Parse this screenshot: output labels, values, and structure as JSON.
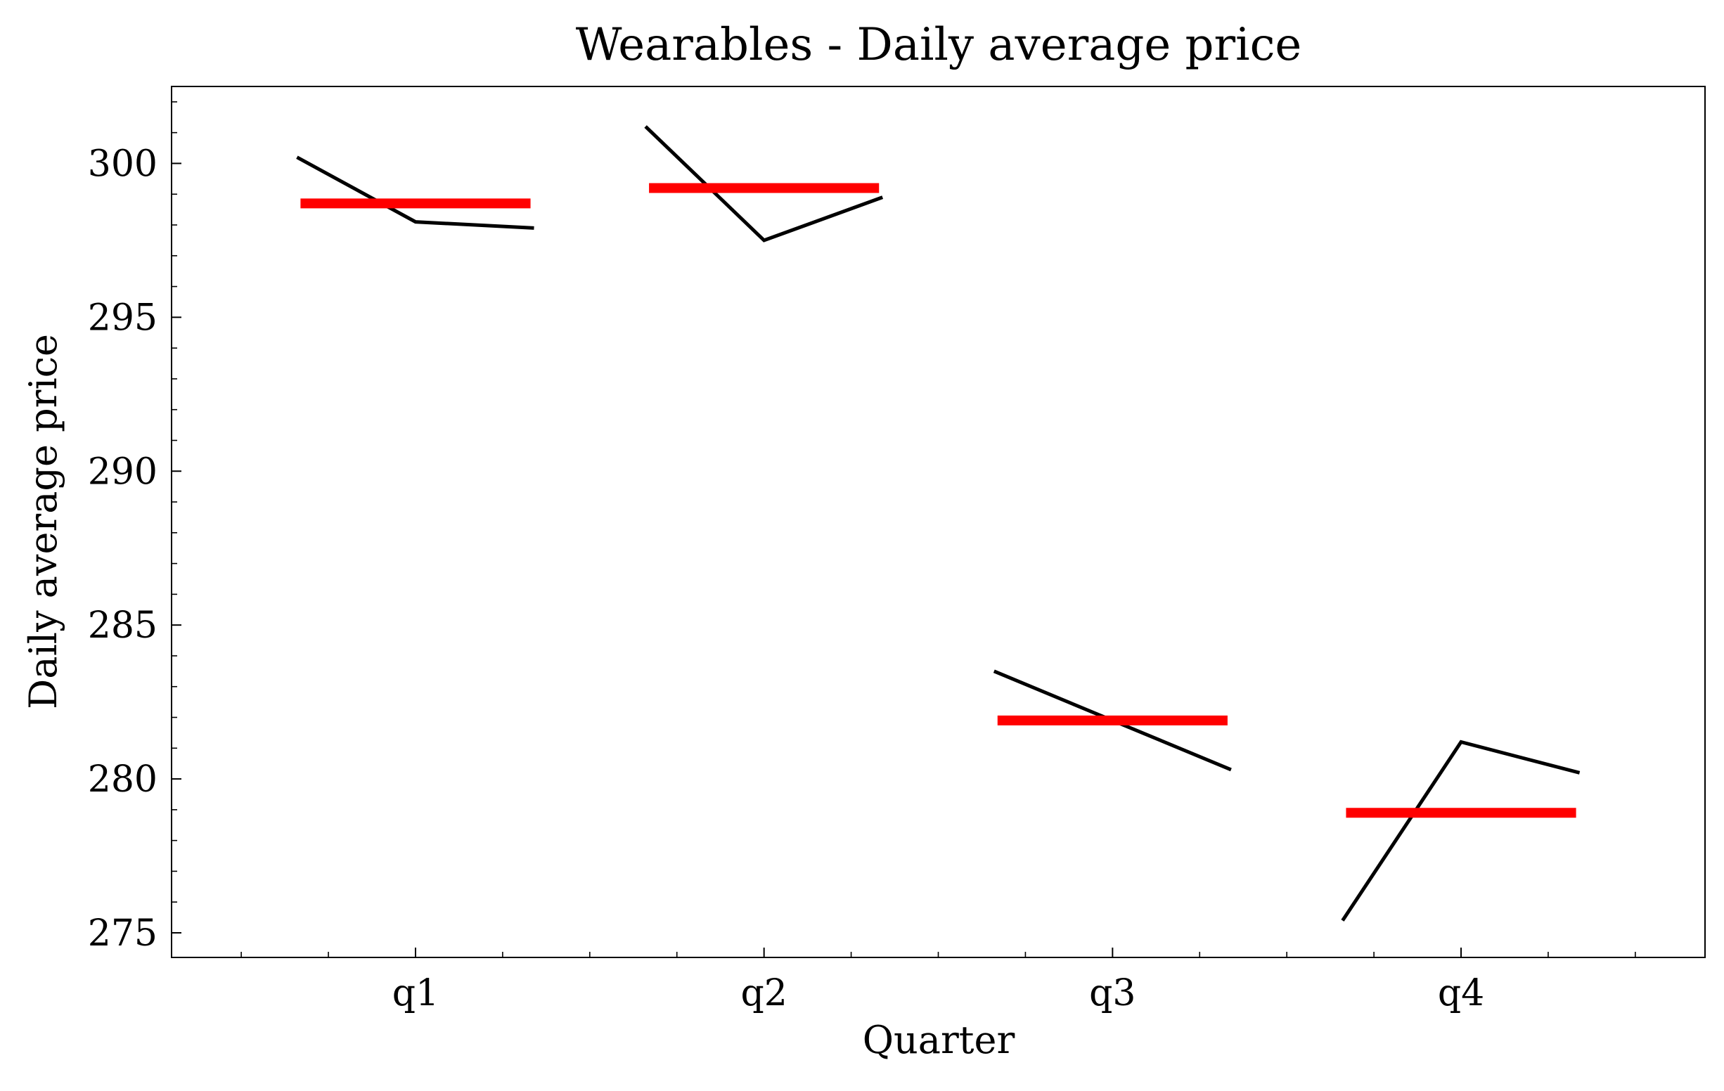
{
  "chart_data": {
    "type": "line",
    "title": "Wearables - Daily average price",
    "xlabel": "Quarter",
    "ylabel": "Daily average price",
    "categories": [
      "q1",
      "q2",
      "q3",
      "q4"
    ],
    "ylim": [
      274.2,
      302.5
    ],
    "yticks": [
      275,
      280,
      285,
      290,
      295,
      300
    ],
    "ytick_labels": [
      "275",
      "280",
      "285",
      "290",
      "295",
      "300"
    ],
    "grid": false,
    "series": [
      {
        "kind": "monthly-line",
        "color": "#000000",
        "groups": [
          {
            "category": "q1",
            "values": [
              300.2,
              298.1,
              297.9
            ]
          },
          {
            "category": "q2",
            "values": [
              301.2,
              297.5,
              298.9
            ]
          },
          {
            "category": "q3",
            "values": [
              283.5,
              281.9,
              280.3
            ]
          },
          {
            "category": "q4",
            "values": [
              275.4,
              281.2,
              280.2
            ]
          }
        ]
      },
      {
        "kind": "quarter-mean",
        "color": "#ff0000",
        "values": [
          298.7,
          299.2,
          281.9,
          278.9
        ]
      }
    ]
  }
}
